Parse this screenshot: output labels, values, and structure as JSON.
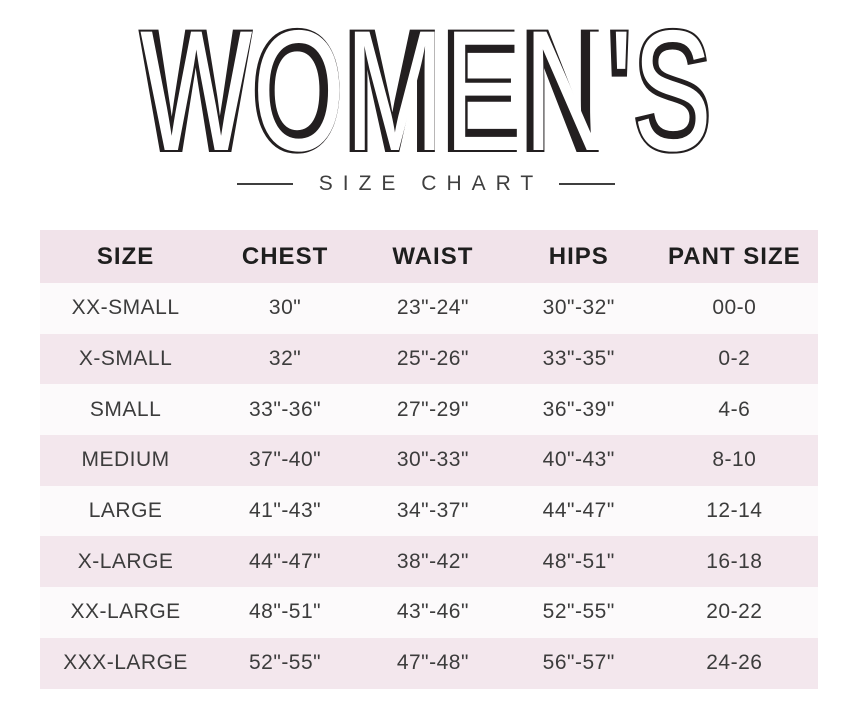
{
  "title": {
    "main": "WOMEN'S",
    "subtitle": "SIZE CHART"
  },
  "colors": {
    "header-pink": "#f1e3ea",
    "row-pink": "#f3e7ed",
    "row-light": "#fcfafb",
    "title-ink": "#231f20",
    "subtitle-ink": "#3f3f3f",
    "header-ink": "#1e1e1e",
    "cell-ink": "#3c3c3c"
  },
  "chart_data": {
    "type": "table",
    "title": "WOMEN'S",
    "subtitle": "SIZE CHART",
    "columns": [
      "SIZE",
      "CHEST",
      "WAIST",
      "HIPS",
      "PANT SIZE"
    ],
    "rows": [
      [
        "XX-SMALL",
        "30\"",
        "23\"-24\"",
        "30\"-32\"",
        "00-0"
      ],
      [
        "X-SMALL",
        "32\"",
        "25\"-26\"",
        "33\"-35\"",
        "0-2"
      ],
      [
        "SMALL",
        "33\"-36\"",
        "27\"-29\"",
        "36\"-39\"",
        "4-6"
      ],
      [
        "MEDIUM",
        "37\"-40\"",
        "30\"-33\"",
        "40\"-43\"",
        "8-10"
      ],
      [
        "LARGE",
        "41\"-43\"",
        "34\"-37\"",
        "44\"-47\"",
        "12-14"
      ],
      [
        "X-LARGE",
        "44\"-47\"",
        "38\"-42\"",
        "48\"-51\"",
        "16-18"
      ],
      [
        "XX-LARGE",
        "48\"-51\"",
        "43\"-46\"",
        "52\"-55\"",
        "20-22"
      ],
      [
        "XXX-LARGE",
        "52\"-55\"",
        "47\"-48\"",
        "56\"-57\"",
        "24-26"
      ]
    ],
    "layout": {
      "row_striping": [
        "light",
        "pink"
      ],
      "header_background": "pink",
      "grid_lines": false,
      "text_alignment": "center"
    }
  }
}
